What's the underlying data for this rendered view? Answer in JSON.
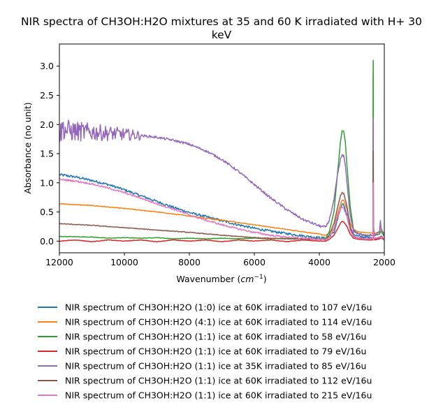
{
  "chart_data": {
    "type": "line",
    "title": "NIR spectra of CH3OH:H2O mixtures at 35 and 60 K irradiated with H+ 30 keV",
    "title_lines": [
      "NIR spectra of CH3OH:H2O mixtures at 35 and 60 K irradiated with H+ 30",
      "keV"
    ],
    "xlabel": "Wavenumber (cm⁻¹)",
    "xlabel_text": "Wavenumber (",
    "xlabel_unit": "cm",
    "xlabel_exp": "−1",
    "xlabel_close": ")",
    "ylabel": "Absorbance (no unit)",
    "xlim": [
      12000,
      2000
    ],
    "ylim": [
      -0.2,
      3.38
    ],
    "xticks": [
      12000,
      10000,
      8000,
      6000,
      4000,
      2000
    ],
    "yticks": [
      0.0,
      0.5,
      1.0,
      1.5,
      2.0,
      2.5,
      3.0
    ],
    "xtick_labels": [
      "12000",
      "10000",
      "8000",
      "6000",
      "4000",
      "2000"
    ],
    "ytick_labels": [
      "0.0",
      "0.5",
      "1.0",
      "1.5",
      "2.0",
      "2.5",
      "3.0"
    ],
    "grid": false,
    "legend_position": "below",
    "series": [
      {
        "name": "NIR spectrum of CH3OH:H2O (1:0) ice at 60K irradiated to 107 eV/16u",
        "color": "#1f77b4",
        "noise": 0.02,
        "points": [
          [
            12000,
            1.14
          ],
          [
            11500,
            1.1
          ],
          [
            11000,
            1.04
          ],
          [
            10500,
            0.97
          ],
          [
            10000,
            0.88
          ],
          [
            9500,
            0.78
          ],
          [
            9000,
            0.68
          ],
          [
            8500,
            0.58
          ],
          [
            8000,
            0.49
          ],
          [
            7500,
            0.42
          ],
          [
            7000,
            0.35
          ],
          [
            6500,
            0.28
          ],
          [
            6000,
            0.22
          ],
          [
            5500,
            0.17
          ],
          [
            5000,
            0.13
          ],
          [
            4500,
            0.09
          ],
          [
            4000,
            0.06
          ],
          [
            3800,
            0.05
          ],
          [
            3700,
            0.08
          ],
          [
            3550,
            0.15
          ],
          [
            3450,
            0.35
          ],
          [
            3350,
            0.55
          ],
          [
            3300,
            0.62
          ],
          [
            3250,
            0.62
          ],
          [
            3150,
            0.45
          ],
          [
            3050,
            0.22
          ],
          [
            2950,
            0.12
          ],
          [
            2800,
            0.08
          ],
          [
            2500,
            0.06
          ],
          [
            2400,
            0.05
          ],
          [
            2350,
            0.05
          ],
          [
            2345,
            0.5
          ],
          [
            2340,
            0.55
          ],
          [
            2335,
            0.1
          ],
          [
            2300,
            0.04
          ],
          [
            2150,
            0.06
          ],
          [
            2100,
            0.08
          ],
          [
            2050,
            0.06
          ],
          [
            2000,
            0.05
          ]
        ]
      },
      {
        "name": "NIR spectrum of CH3OH:H2O (4:1) ice at 60K irradiated to 114 eV/16u",
        "color": "#ff7f0e",
        "noise": 0.006,
        "points": [
          [
            12000,
            0.64
          ],
          [
            11000,
            0.61
          ],
          [
            10000,
            0.56
          ],
          [
            9000,
            0.5
          ],
          [
            8000,
            0.43
          ],
          [
            7000,
            0.36
          ],
          [
            6000,
            0.28
          ],
          [
            5000,
            0.2
          ],
          [
            4000,
            0.12
          ],
          [
            3800,
            0.1
          ],
          [
            3700,
            0.14
          ],
          [
            3550,
            0.22
          ],
          [
            3450,
            0.45
          ],
          [
            3350,
            0.63
          ],
          [
            3300,
            0.7
          ],
          [
            3250,
            0.7
          ],
          [
            3150,
            0.55
          ],
          [
            3050,
            0.3
          ],
          [
            2950,
            0.2
          ],
          [
            2800,
            0.16
          ],
          [
            2500,
            0.14
          ],
          [
            2350,
            0.14
          ],
          [
            2345,
            0.8
          ],
          [
            2340,
            0.9
          ],
          [
            2335,
            0.15
          ],
          [
            2300,
            0.13
          ],
          [
            2150,
            0.16
          ],
          [
            2100,
            0.22
          ],
          [
            2050,
            0.16
          ],
          [
            2000,
            0.14
          ]
        ]
      },
      {
        "name": "NIR spectrum of CH3OH:H2O (1:1) ice at 60K irradiated to 58 eV/16u",
        "color": "#2ca02c",
        "noise": 0.004,
        "points": [
          [
            12000,
            0.08
          ],
          [
            11000,
            0.07
          ],
          [
            10500,
            0.05
          ],
          [
            10000,
            0.06
          ],
          [
            9500,
            0.05
          ],
          [
            9000,
            0.06
          ],
          [
            8500,
            0.04
          ],
          [
            8000,
            0.05
          ],
          [
            7500,
            0.04
          ],
          [
            7000,
            0.05
          ],
          [
            6500,
            0.04
          ],
          [
            6000,
            0.05
          ],
          [
            5500,
            0.04
          ],
          [
            5000,
            0.05
          ],
          [
            4500,
            0.04
          ],
          [
            4000,
            0.04
          ],
          [
            3800,
            0.05
          ],
          [
            3700,
            0.15
          ],
          [
            3550,
            0.5
          ],
          [
            3450,
            1.1
          ],
          [
            3350,
            1.7
          ],
          [
            3300,
            1.89
          ],
          [
            3250,
            1.88
          ],
          [
            3200,
            1.7
          ],
          [
            3150,
            1.3
          ],
          [
            3050,
            0.6
          ],
          [
            2950,
            0.2
          ],
          [
            2800,
            0.12
          ],
          [
            2500,
            0.1
          ],
          [
            2350,
            0.1
          ],
          [
            2345,
            2.8
          ],
          [
            2340,
            3.1
          ],
          [
            2335,
            0.25
          ],
          [
            2300,
            0.1
          ],
          [
            2150,
            0.12
          ],
          [
            2100,
            0.17
          ],
          [
            2050,
            0.12
          ],
          [
            2000,
            0.08
          ]
        ]
      },
      {
        "name": "NIR spectrum of CH3OH:H2O (1:1) ice at 60K irradiated to 79 eV/16u",
        "color": "#d62728",
        "noise": 0.004,
        "points": [
          [
            12000,
            0.0
          ],
          [
            11500,
            0.02
          ],
          [
            11000,
            -0.01
          ],
          [
            10500,
            0.02
          ],
          [
            10000,
            0.0
          ],
          [
            9500,
            0.02
          ],
          [
            9000,
            -0.01
          ],
          [
            8500,
            0.02
          ],
          [
            8000,
            0.0
          ],
          [
            7500,
            0.02
          ],
          [
            7000,
            -0.01
          ],
          [
            6500,
            0.02
          ],
          [
            6000,
            0.0
          ],
          [
            5500,
            0.02
          ],
          [
            5000,
            -0.01
          ],
          [
            4500,
            0.02
          ],
          [
            4000,
            0.0
          ],
          [
            3800,
            0.0
          ],
          [
            3700,
            0.03
          ],
          [
            3550,
            0.1
          ],
          [
            3450,
            0.2
          ],
          [
            3350,
            0.31
          ],
          [
            3300,
            0.34
          ],
          [
            3250,
            0.33
          ],
          [
            3150,
            0.25
          ],
          [
            3050,
            0.12
          ],
          [
            2950,
            0.05
          ],
          [
            2800,
            0.03
          ],
          [
            2500,
            0.02
          ],
          [
            2350,
            0.02
          ],
          [
            2345,
            1.3
          ],
          [
            2340,
            1.45
          ],
          [
            2335,
            0.1
          ],
          [
            2300,
            0.02
          ],
          [
            2150,
            0.04
          ],
          [
            2100,
            0.06
          ],
          [
            2050,
            0.04
          ],
          [
            2000,
            0.02
          ]
        ]
      },
      {
        "name": "NIR spectrum of CH3OH:H2O (1:1) ice at 35K irradiated to 85 eV/16u",
        "color": "#9467bd",
        "noise_high": 0.2,
        "noise_low": 0.02,
        "noise_cut": 9500,
        "points": [
          [
            12000,
            1.8
          ],
          [
            11900,
            1.95
          ],
          [
            11800,
            1.9
          ],
          [
            11500,
            1.88
          ],
          [
            11000,
            1.87
          ],
          [
            10500,
            1.85
          ],
          [
            10000,
            1.83
          ],
          [
            9500,
            1.81
          ],
          [
            9000,
            1.78
          ],
          [
            8500,
            1.73
          ],
          [
            8000,
            1.66
          ],
          [
            7500,
            1.55
          ],
          [
            7000,
            1.4
          ],
          [
            6500,
            1.2
          ],
          [
            6000,
            0.97
          ],
          [
            5500,
            0.74
          ],
          [
            5000,
            0.54
          ],
          [
            4500,
            0.37
          ],
          [
            4000,
            0.26
          ],
          [
            3800,
            0.24
          ],
          [
            3700,
            0.35
          ],
          [
            3550,
            0.7
          ],
          [
            3450,
            1.1
          ],
          [
            3350,
            1.4
          ],
          [
            3300,
            1.48
          ],
          [
            3250,
            1.46
          ],
          [
            3200,
            1.3
          ],
          [
            3150,
            1.0
          ],
          [
            3050,
            0.45
          ],
          [
            2950,
            0.18
          ],
          [
            2800,
            0.12
          ],
          [
            2500,
            0.1
          ],
          [
            2400,
            0.1
          ],
          [
            2350,
            0.1
          ],
          [
            2345,
            1.9
          ],
          [
            2340,
            2.1
          ],
          [
            2335,
            0.2
          ],
          [
            2300,
            0.1
          ],
          [
            2150,
            0.15
          ],
          [
            2120,
            0.34
          ],
          [
            2100,
            0.2
          ],
          [
            2050,
            0.15
          ],
          [
            2000,
            0.12
          ]
        ]
      },
      {
        "name": "NIR spectrum of CH3OH:H2O (1:1) ice at 60K irradiated to 112 eV/16u",
        "color": "#8c564b",
        "noise": 0.006,
        "points": [
          [
            12000,
            0.3
          ],
          [
            11000,
            0.27
          ],
          [
            10000,
            0.23
          ],
          [
            9000,
            0.19
          ],
          [
            8000,
            0.15
          ],
          [
            7000,
            0.1
          ],
          [
            6000,
            0.06
          ],
          [
            5000,
            0.04
          ],
          [
            4000,
            0.03
          ],
          [
            3800,
            0.03
          ],
          [
            3700,
            0.1
          ],
          [
            3550,
            0.3
          ],
          [
            3450,
            0.55
          ],
          [
            3350,
            0.78
          ],
          [
            3300,
            0.83
          ],
          [
            3250,
            0.82
          ],
          [
            3150,
            0.6
          ],
          [
            3050,
            0.25
          ],
          [
            2950,
            0.08
          ],
          [
            2800,
            0.05
          ],
          [
            2500,
            0.04
          ],
          [
            2350,
            0.04
          ],
          [
            2345,
            1.4
          ],
          [
            2340,
            1.55
          ],
          [
            2335,
            0.12
          ],
          [
            2300,
            0.04
          ],
          [
            2150,
            0.06
          ],
          [
            2100,
            0.09
          ],
          [
            2050,
            0.06
          ],
          [
            2000,
            0.04
          ]
        ]
      },
      {
        "name": "NIR spectrum of CH3OH:H2O (1:1) ice at 60K irradiated to 215 eV/16u",
        "color": "#e377c2",
        "noise": 0.015,
        "points": [
          [
            12000,
            1.06
          ],
          [
            11500,
            1.03
          ],
          [
            11000,
            0.98
          ],
          [
            10500,
            0.91
          ],
          [
            10000,
            0.83
          ],
          [
            9500,
            0.74
          ],
          [
            9000,
            0.64
          ],
          [
            8500,
            0.55
          ],
          [
            8000,
            0.45
          ],
          [
            7500,
            0.36
          ],
          [
            7000,
            0.28
          ],
          [
            6500,
            0.21
          ],
          [
            6000,
            0.15
          ],
          [
            5500,
            0.1
          ],
          [
            5000,
            0.07
          ],
          [
            4500,
            0.05
          ],
          [
            4000,
            0.03
          ],
          [
            3800,
            0.03
          ],
          [
            3700,
            0.07
          ],
          [
            3550,
            0.2
          ],
          [
            3450,
            0.4
          ],
          [
            3350,
            0.55
          ],
          [
            3300,
            0.58
          ],
          [
            3250,
            0.57
          ],
          [
            3150,
            0.42
          ],
          [
            3050,
            0.18
          ],
          [
            2950,
            0.07
          ],
          [
            2800,
            0.05
          ],
          [
            2500,
            0.04
          ],
          [
            2350,
            0.04
          ],
          [
            2345,
            0.9
          ],
          [
            2340,
            1.0
          ],
          [
            2335,
            0.1
          ],
          [
            2300,
            0.04
          ],
          [
            2150,
            0.06
          ],
          [
            2100,
            0.08
          ],
          [
            2050,
            0.06
          ],
          [
            2000,
            0.04
          ]
        ]
      }
    ]
  }
}
